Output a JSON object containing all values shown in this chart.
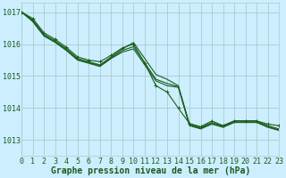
{
  "background_color": "#cceeff",
  "grid_color": "#aacccc",
  "line_color": "#1a5c1a",
  "marker_color": "#1a5c1a",
  "xlabel": "Graphe pression niveau de la mer (hPa)",
  "xlabel_fontsize": 7,
  "tick_fontsize": 6,
  "ytick_labels": [
    1013,
    1014,
    1015,
    1016,
    1017
  ],
  "ylim": [
    1012.5,
    1017.3
  ],
  "xlim": [
    0,
    23
  ],
  "xticks": [
    0,
    1,
    2,
    3,
    4,
    5,
    6,
    7,
    8,
    9,
    10,
    11,
    12,
    13,
    14,
    15,
    16,
    17,
    18,
    19,
    20,
    21,
    22,
    23
  ],
  "series": [
    [
      1017.0,
      1016.75,
      1016.3,
      1016.1,
      1015.85,
      1015.55,
      1015.45,
      1015.35,
      1015.6,
      1015.85,
      1016.05,
      1015.55,
      1015.05,
      1014.9,
      1014.7,
      1013.5,
      1013.4,
      1013.55,
      1013.45,
      1013.6,
      1013.6,
      1013.6,
      1013.45,
      1013.35
    ],
    [
      1017.0,
      1016.7,
      1016.25,
      1016.1,
      1015.8,
      1015.5,
      1015.4,
      1015.3,
      1015.55,
      1015.75,
      1015.85,
      1015.35,
      1014.85,
      1014.7,
      1014.65,
      1013.45,
      1013.35,
      1013.5,
      1013.4,
      1013.55,
      1013.55,
      1013.55,
      1013.4,
      1013.3
    ],
    [
      1017.0,
      1016.7,
      1016.3,
      1016.1,
      1015.85,
      1015.55,
      1015.45,
      1015.4,
      1015.6,
      1015.8,
      1015.95,
      1015.5,
      1014.95,
      1014.8,
      1014.7,
      1013.48,
      1013.38,
      1013.52,
      1013.42,
      1013.57,
      1013.57,
      1013.57,
      1013.42,
      1013.32
    ],
    [
      1017.0,
      1016.8,
      1016.35,
      1016.15,
      1015.9,
      1015.6,
      1015.5,
      1015.45,
      1015.65,
      1015.88,
      1016.0,
      1015.4,
      1014.7,
      1014.5,
      1014.0,
      1013.5,
      1013.4,
      1013.6,
      1013.45,
      1013.6,
      1013.6,
      1013.6,
      1013.5,
      1013.45
    ]
  ],
  "marker_series_idx": [
    0,
    1,
    2,
    3
  ],
  "smooth_series": [],
  "wiggly_series_idx": 3
}
